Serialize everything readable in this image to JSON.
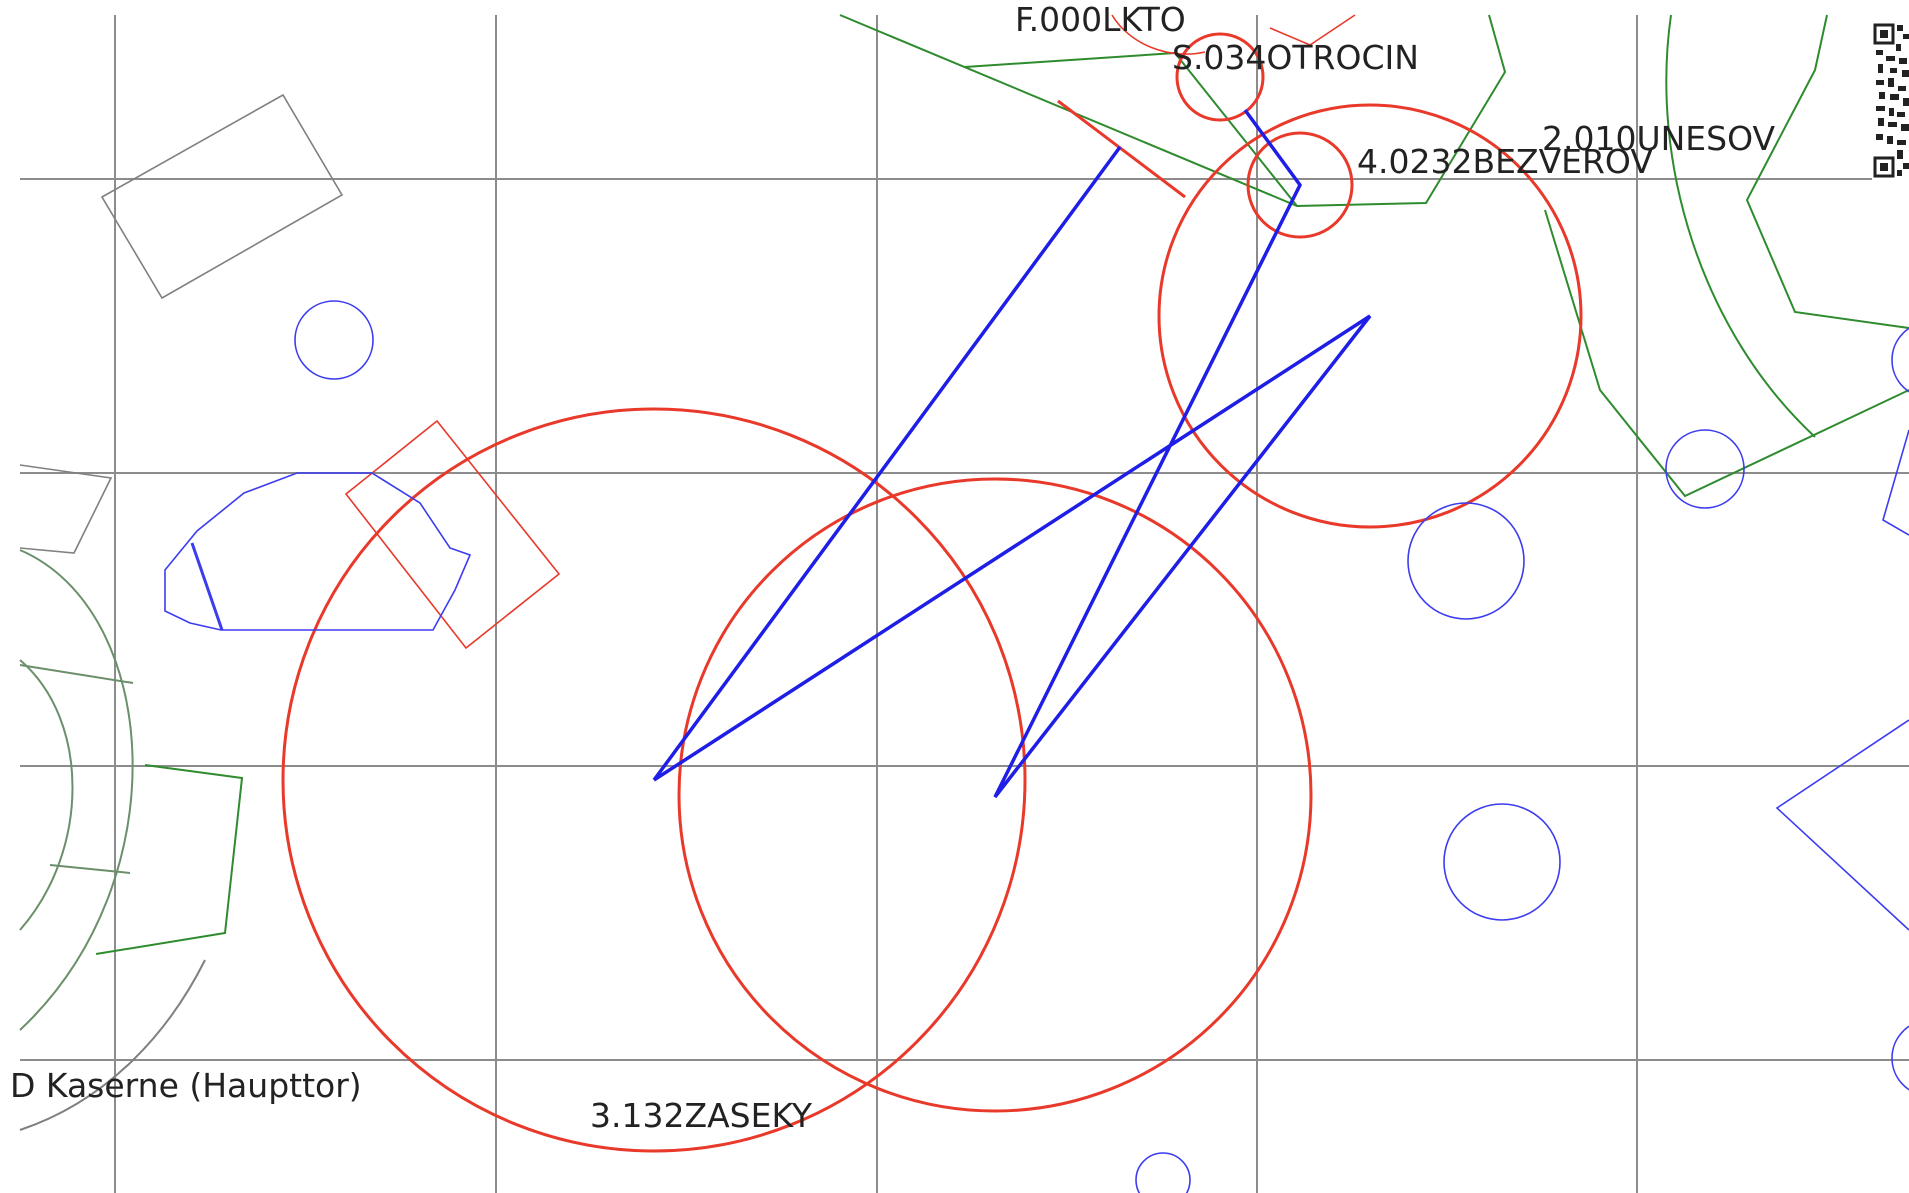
{
  "map": {
    "labels": {
      "f000": "F.000LKTO",
      "s034": "S.034OTROCIN",
      "c4": "4.0232BEZVEROV",
      "c2": "2.010UNESOV",
      "c3": "3.132ZASEKY",
      "kaserne": "D Kaserne (Haupttor)"
    },
    "icons": {
      "qr": "qr-code-icon"
    },
    "colors": {
      "grid": "#8c8c8c",
      "course": "#1e1ee6",
      "control": "#e8392a",
      "vegetation": "#2e8b2e",
      "feature_blue": "#3c3cf0",
      "building": "#808080"
    }
  }
}
